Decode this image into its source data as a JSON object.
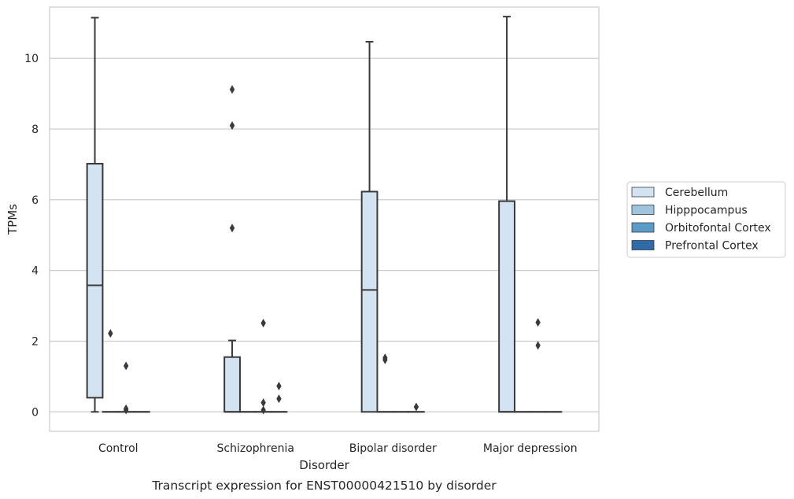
{
  "chart_data": {
    "type": "box",
    "xlabel": "Disorder",
    "ylabel": "TPMs",
    "caption": "Transcript expression for ENST00000421510 by disorder",
    "ylim": [
      -0.55,
      11.45
    ],
    "yticks": [
      0,
      2,
      4,
      6,
      8,
      10
    ],
    "grid": "horizontal",
    "legend_position": "right",
    "categories": [
      "Control",
      "Schizophrenia",
      "Bipolar disorder",
      "Major depression"
    ],
    "series": [
      {
        "name": "Cerebellum",
        "color": "#d4e3f2",
        "boxes": [
          {
            "whislo": 0,
            "q1": 0.4,
            "med": 3.58,
            "q3": 7.02,
            "whishi": 11.15,
            "fliers": []
          },
          {
            "whislo": 0,
            "q1": 0,
            "med": 0,
            "q3": 1.55,
            "whishi": 2.02,
            "fliers": [
              5.2,
              8.1,
              9.12
            ]
          },
          {
            "whislo": 0,
            "q1": 0,
            "med": 3.45,
            "q3": 6.23,
            "whishi": 10.47,
            "fliers": []
          },
          {
            "whislo": 0,
            "q1": 0,
            "med": 0,
            "q3": 5.96,
            "whishi": 11.18,
            "fliers": []
          }
        ]
      },
      {
        "name": "Hipppocampus",
        "color": "#9ec5dd",
        "boxes": [
          {
            "whislo": 0,
            "q1": 0,
            "med": 0,
            "q3": 0,
            "whishi": 0,
            "fliers": [
              2.22
            ]
          },
          {
            "whislo": 0,
            "q1": 0,
            "med": 0,
            "q3": 0,
            "whishi": 0,
            "fliers": []
          },
          {
            "whislo": 0,
            "q1": 0,
            "med": 0,
            "q3": 0,
            "whishi": 0,
            "fliers": [
              1.47,
              1.53
            ]
          },
          {
            "whislo": 0,
            "q1": 0,
            "med": 0,
            "q3": 0,
            "whishi": 0,
            "fliers": []
          }
        ]
      },
      {
        "name": "Orbitofontal Cortex",
        "color": "#5b9bc8",
        "boxes": [
          {
            "whislo": 0,
            "q1": 0,
            "med": 0,
            "q3": 0,
            "whishi": 0,
            "fliers": [
              0.05,
              0.09,
              1.3
            ]
          },
          {
            "whislo": 0,
            "q1": 0,
            "med": 0,
            "q3": 0,
            "whishi": 0,
            "fliers": [
              0.05,
              0.26,
              2.51
            ]
          },
          {
            "whislo": 0,
            "q1": 0,
            "med": 0,
            "q3": 0,
            "whishi": 0,
            "fliers": []
          },
          {
            "whislo": 0,
            "q1": 0,
            "med": 0,
            "q3": 0,
            "whishi": 0,
            "fliers": [
              1.88,
              2.53
            ]
          }
        ]
      },
      {
        "name": "Prefrontal Cortex",
        "color": "#2e6ba8",
        "boxes": [
          {
            "whislo": 0,
            "q1": 0,
            "med": 0,
            "q3": 0,
            "whishi": 0,
            "fliers": []
          },
          {
            "whislo": 0,
            "q1": 0,
            "med": 0,
            "q3": 0,
            "whishi": 0,
            "fliers": [
              0.37,
              0.73
            ]
          },
          {
            "whislo": 0,
            "q1": 0,
            "med": 0,
            "q3": 0,
            "whishi": 0,
            "fliers": [
              0.14
            ]
          },
          {
            "whislo": 0,
            "q1": 0,
            "med": 0,
            "q3": 0,
            "whishi": 0,
            "fliers": []
          }
        ]
      }
    ]
  }
}
